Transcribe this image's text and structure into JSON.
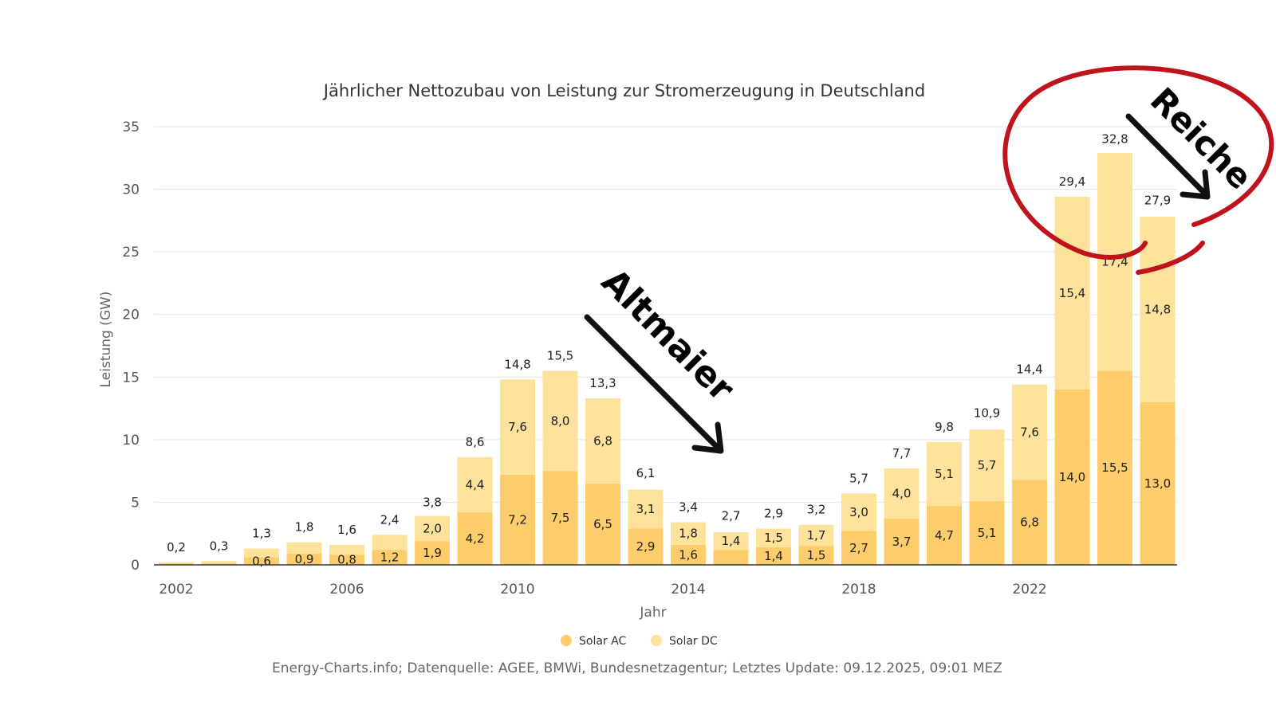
{
  "chart_data": {
    "type": "bar",
    "stacked": true,
    "title": "Jährlicher Nettozubau von Leistung zur Stromerzeugung in Deutschland",
    "xlabel": "Jahr",
    "ylabel": "Leistung (GW)",
    "ylim": [
      0,
      35
    ],
    "yticks": [
      "0",
      "5",
      "10",
      "15",
      "20",
      "25",
      "30",
      "35"
    ],
    "xticks": [
      "2002",
      "2006",
      "2010",
      "2014",
      "2018",
      "2022"
    ],
    "categories": [
      "2002",
      "2003",
      "2004",
      "2005",
      "2006",
      "2007",
      "2008",
      "2009",
      "2010",
      "2011",
      "2012",
      "2013",
      "2014",
      "2015",
      "2016",
      "2017",
      "2018",
      "2019",
      "2020",
      "2021",
      "2022",
      "2023",
      "2024",
      "2025"
    ],
    "series": [
      {
        "name": "Solar AC",
        "color": "#fdcc6b",
        "values": [
          0.1,
          0.1,
          0.6,
          0.9,
          0.8,
          1.2,
          1.9,
          4.2,
          7.2,
          7.5,
          6.5,
          2.9,
          1.6,
          1.2,
          1.4,
          1.5,
          2.7,
          3.7,
          4.7,
          5.1,
          6.8,
          14.0,
          15.5,
          13.0
        ],
        "labels": [
          "",
          "",
          "0,6",
          "0,9",
          "0,8",
          "1,2",
          "1,9",
          "4,2",
          "7,2",
          "7,5",
          "6,5",
          "2,9",
          "1,6",
          "",
          "1,4",
          "1,5",
          "2,7",
          "3,7",
          "4,7",
          "5,1",
          "6,8",
          "14,0",
          "15,5",
          "13,0"
        ]
      },
      {
        "name": "Solar DC",
        "color": "#fee19b",
        "values": [
          0.1,
          0.2,
          0.7,
          0.9,
          0.8,
          1.2,
          2.0,
          4.4,
          7.6,
          8.0,
          6.8,
          3.1,
          1.8,
          1.4,
          1.5,
          1.7,
          3.0,
          4.0,
          5.1,
          5.7,
          7.6,
          15.4,
          17.4,
          14.8
        ],
        "labels": [
          "",
          "",
          "",
          "",
          "",
          "",
          "2,0",
          "4,4",
          "7,6",
          "8,0",
          "6,8",
          "3,1",
          "1,8",
          "1,4",
          "1,5",
          "1,7",
          "3,0",
          "4,0",
          "5,1",
          "5,7",
          "7,6",
          "15,4",
          "17,4",
          "14,8"
        ]
      }
    ],
    "totals": [
      0.2,
      0.3,
      1.3,
      1.8,
      1.6,
      2.4,
      3.8,
      8.6,
      14.8,
      15.5,
      13.3,
      6.1,
      3.4,
      2.7,
      2.9,
      3.2,
      5.7,
      7.7,
      9.8,
      10.9,
      14.4,
      29.4,
      32.8,
      27.9
    ],
    "total_labels": [
      "0,2",
      "0,3",
      "1,3",
      "1,8",
      "1,6",
      "2,4",
      "3,8",
      "8,6",
      "14,8",
      "15,5",
      "13,3",
      "6,1",
      "3,4",
      "2,7",
      "2,9",
      "3,2",
      "5,7",
      "7,7",
      "9,8",
      "10,9",
      "14,4",
      "29,4",
      "32,8",
      "27,9"
    ],
    "legend": [
      "Solar AC",
      "Solar DC"
    ],
    "legend_position": "bottom-center",
    "grid": true
  },
  "annotations": {
    "altmaier": "Altmaier",
    "reiche": "Reiche",
    "arrow_color": "#111111",
    "circle_color": "#c0141c"
  },
  "source_text": "Energy-Charts.info; Datenquelle: AGEE, BMWi, Bundesnetzagentur; Letztes Update: 09.12.2025, 09:01 MEZ"
}
